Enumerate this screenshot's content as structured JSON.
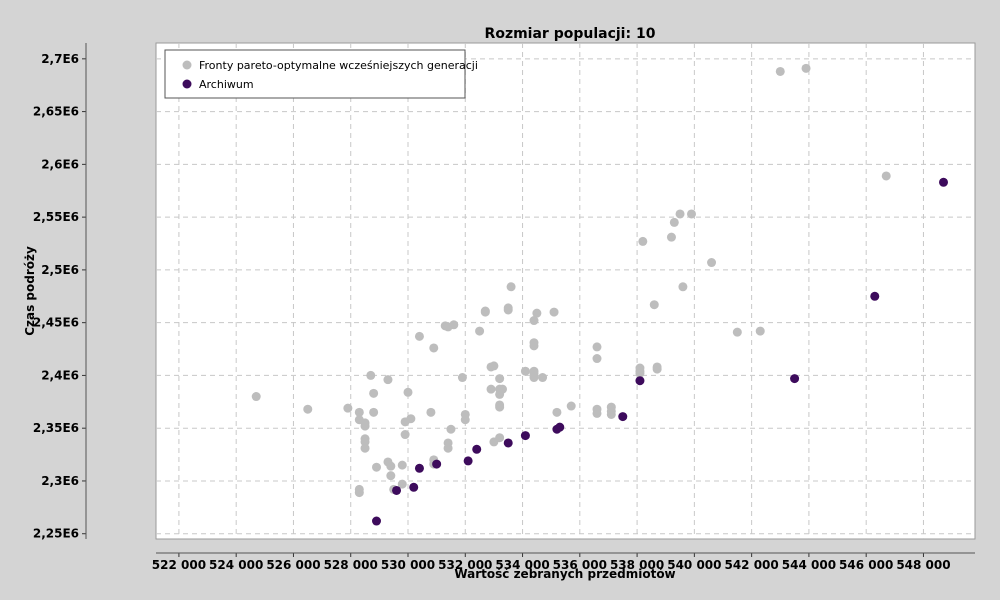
{
  "chart_data": {
    "type": "scatter",
    "title": "Rozmiar populacji: 10",
    "xlabel": "Wartość zebranych przedmiotów",
    "ylabel": "Czas podróży",
    "xlim": [
      521200,
      549800
    ],
    "ylim": [
      2245000,
      2715000
    ],
    "x_ticks": [
      522000,
      524000,
      526000,
      528000,
      530000,
      532000,
      534000,
      536000,
      538000,
      540000,
      542000,
      544000,
      546000,
      548000
    ],
    "x_tick_labels": [
      "522 000",
      "524 000",
      "526 000",
      "528 000",
      "530 000",
      "532 000",
      "534 000",
      "536 000",
      "538 000",
      "540 000",
      "542 000",
      "544 000",
      "546 000",
      "548 000"
    ],
    "y_ticks": [
      2250000,
      2300000,
      2350000,
      2400000,
      2450000,
      2500000,
      2550000,
      2600000,
      2650000,
      2700000
    ],
    "y_tick_labels": [
      "2,25E6",
      "2,3E6",
      "2,35E6",
      "2,4E6",
      "2,45E6",
      "2,5E6",
      "2,55E6",
      "2,6E6",
      "2,65E6",
      "2,7E6"
    ],
    "grid": true,
    "legend_position": "top-left",
    "series": [
      {
        "name": "Fronty pareto-optymalne wcześniejszych generacji",
        "color": "#bdbdbd",
        "points": [
          [
            524700,
            2380000
          ],
          [
            526500,
            2368000
          ],
          [
            527900,
            2369000
          ],
          [
            528300,
            2365000
          ],
          [
            528300,
            2358000
          ],
          [
            528500,
            2355000
          ],
          [
            528500,
            2352000
          ],
          [
            528800,
            2365000
          ],
          [
            528800,
            2383000
          ],
          [
            528700,
            2400000
          ],
          [
            528500,
            2340000
          ],
          [
            528500,
            2337000
          ],
          [
            528500,
            2331000
          ],
          [
            528900,
            2313000
          ],
          [
            528300,
            2292000
          ],
          [
            528300,
            2289000
          ],
          [
            529300,
            2396000
          ],
          [
            529300,
            2318000
          ],
          [
            529400,
            2314000
          ],
          [
            529400,
            2305000
          ],
          [
            529500,
            2292000
          ],
          [
            529800,
            2297000
          ],
          [
            529800,
            2315000
          ],
          [
            529900,
            2344000
          ],
          [
            529900,
            2356000
          ],
          [
            530100,
            2359000
          ],
          [
            530000,
            2384000
          ],
          [
            530400,
            2437000
          ],
          [
            530900,
            2426000
          ],
          [
            530800,
            2365000
          ],
          [
            530900,
            2320000
          ],
          [
            530900,
            2316000
          ],
          [
            531300,
            2447000
          ],
          [
            531400,
            2446000
          ],
          [
            531600,
            2448000
          ],
          [
            531400,
            2336000
          ],
          [
            531400,
            2331000
          ],
          [
            531500,
            2349000
          ],
          [
            531900,
            2398000
          ],
          [
            532000,
            2363000
          ],
          [
            532000,
            2358000
          ],
          [
            532500,
            2442000
          ],
          [
            532700,
            2461000
          ],
          [
            532700,
            2460000
          ],
          [
            532900,
            2408000
          ],
          [
            533000,
            2409000
          ],
          [
            532900,
            2387000
          ],
          [
            533000,
            2337000
          ],
          [
            533200,
            2341000
          ],
          [
            533200,
            2397000
          ],
          [
            533200,
            2387000
          ],
          [
            533300,
            2387000
          ],
          [
            533200,
            2382000
          ],
          [
            533200,
            2372000
          ],
          [
            533200,
            2370000
          ],
          [
            533500,
            2462000
          ],
          [
            533500,
            2464000
          ],
          [
            533600,
            2484000
          ],
          [
            534100,
            2404000
          ],
          [
            534400,
            2452000
          ],
          [
            534400,
            2431000
          ],
          [
            534400,
            2428000
          ],
          [
            534400,
            2404000
          ],
          [
            534400,
            2402000
          ],
          [
            534400,
            2398000
          ],
          [
            534500,
            2459000
          ],
          [
            534700,
            2398000
          ],
          [
            535100,
            2460000
          ],
          [
            535200,
            2365000
          ],
          [
            535700,
            2371000
          ],
          [
            536600,
            2427000
          ],
          [
            536600,
            2416000
          ],
          [
            536600,
            2368000
          ],
          [
            536600,
            2364000
          ],
          [
            537100,
            2370000
          ],
          [
            537100,
            2366000
          ],
          [
            537100,
            2363000
          ],
          [
            538100,
            2407000
          ],
          [
            538100,
            2404000
          ],
          [
            538100,
            2402000
          ],
          [
            538200,
            2527000
          ],
          [
            538600,
            2467000
          ],
          [
            538700,
            2408000
          ],
          [
            538700,
            2406000
          ],
          [
            539200,
            2531000
          ],
          [
            539300,
            2545000
          ],
          [
            539500,
            2553000
          ],
          [
            539900,
            2553000
          ],
          [
            539600,
            2484000
          ],
          [
            540600,
            2507000
          ],
          [
            541500,
            2441000
          ],
          [
            542300,
            2442000
          ],
          [
            543000,
            2688000
          ],
          [
            543900,
            2691000
          ],
          [
            546700,
            2589000
          ]
        ]
      },
      {
        "name": "Archiwum",
        "color": "#3d0b5c",
        "points": [
          [
            528900,
            2262000
          ],
          [
            529600,
            2291000
          ],
          [
            530200,
            2294000
          ],
          [
            530400,
            2312000
          ],
          [
            531000,
            2316000
          ],
          [
            532100,
            2319000
          ],
          [
            532400,
            2330000
          ],
          [
            533500,
            2336000
          ],
          [
            534100,
            2343000
          ],
          [
            535200,
            2349000
          ],
          [
            535300,
            2351000
          ],
          [
            537500,
            2361000
          ],
          [
            538100,
            2395000
          ],
          [
            543500,
            2397000
          ],
          [
            546300,
            2475000
          ],
          [
            548700,
            2583000
          ]
        ]
      }
    ]
  }
}
